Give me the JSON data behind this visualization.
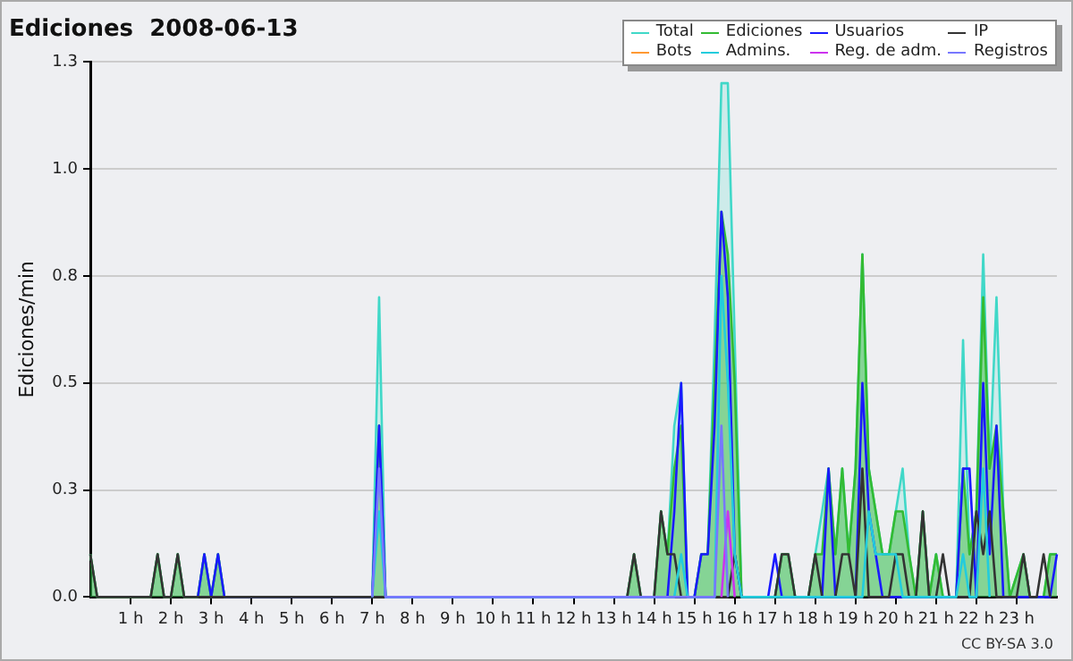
{
  "chart_data": {
    "type": "line",
    "title": "Ediciones  2008-06-13",
    "ylabel": "Ediciones/min",
    "xlim": [
      0,
      24
    ],
    "xticks": [
      {
        "value": 1,
        "label": "1 h"
      },
      {
        "value": 2,
        "label": "2 h"
      },
      {
        "value": 3,
        "label": "3 h"
      },
      {
        "value": 4,
        "label": "4 h"
      },
      {
        "value": 5,
        "label": "5 h"
      },
      {
        "value": 6,
        "label": "6 h"
      },
      {
        "value": 7,
        "label": "7 h"
      },
      {
        "value": 8,
        "label": "8 h"
      },
      {
        "value": 9,
        "label": "9 h"
      },
      {
        "value": 10,
        "label": "10 h"
      },
      {
        "value": 11,
        "label": "11 h"
      },
      {
        "value": 12,
        "label": "12 h"
      },
      {
        "value": 13,
        "label": "13 h"
      },
      {
        "value": 14,
        "label": "14 h"
      },
      {
        "value": 15,
        "label": "15 h"
      },
      {
        "value": 16,
        "label": "16 h"
      },
      {
        "value": 17,
        "label": "17 h"
      },
      {
        "value": 18,
        "label": "18 h"
      },
      {
        "value": 19,
        "label": "19 h"
      },
      {
        "value": 20,
        "label": "20 h"
      },
      {
        "value": 21,
        "label": "21 h"
      },
      {
        "value": 22,
        "label": "22 h"
      },
      {
        "value": 23,
        "label": "23 h"
      }
    ],
    "ylim": [
      0,
      1.25
    ],
    "yticks": [
      {
        "value": 0,
        "label": "0.0"
      },
      {
        "value": 0.25,
        "label": "0.3"
      },
      {
        "value": 0.5,
        "label": "0.5"
      },
      {
        "value": 0.75,
        "label": "0.8"
      },
      {
        "value": 1,
        "label": "1.0"
      },
      {
        "value": 1.25,
        "label": "1.3"
      }
    ],
    "grid": "y",
    "legend": "top right",
    "marker": "none",
    "line_style": "solid",
    "annotations": [
      "CC BY-SA 3.0"
    ],
    "series": [
      {
        "name": "Total",
        "type": "area",
        "color": "#40d8c8",
        "x": [
          0,
          0.17,
          1.5,
          1.67,
          1.83,
          2,
          2.17,
          2.33,
          2.67,
          2.83,
          3,
          3.17,
          3.33,
          7,
          7.17,
          7.33,
          13.33,
          13.5,
          13.67,
          14,
          14.17,
          14.33,
          14.5,
          14.67,
          14.83,
          15,
          15.17,
          15.33,
          15.5,
          15.67,
          15.83,
          16,
          16.17,
          17,
          17.17,
          17.33,
          17.5,
          17.83,
          18,
          18.17,
          18.33,
          18.5,
          18.67,
          18.83,
          19,
          19.17,
          19.33,
          19.5,
          19.67,
          19.83,
          20,
          20.17,
          20.33,
          20.5,
          20.67,
          20.83,
          21,
          21.17,
          21.5,
          21.67,
          21.83,
          22,
          22.17,
          22.33,
          22.5,
          22.67,
          22.83,
          23.17,
          23.33,
          23.67,
          23.83,
          24
        ],
        "values": [
          0.1,
          0,
          0,
          0.1,
          0,
          0,
          0.1,
          0,
          0,
          0.1,
          0,
          0.1,
          0,
          0,
          0.7,
          0,
          0,
          0.1,
          0,
          0,
          0.2,
          0.1,
          0.4,
          0.5,
          0,
          0,
          0.1,
          0.1,
          0.6,
          1.2,
          1.2,
          0.6,
          0,
          0,
          0.1,
          0.1,
          0,
          0,
          0.1,
          0.2,
          0.3,
          0.1,
          0.3,
          0.1,
          0.3,
          0.8,
          0.3,
          0.2,
          0.1,
          0.1,
          0.2,
          0.3,
          0.1,
          0,
          0.2,
          0,
          0.1,
          0,
          0,
          0.6,
          0.1,
          0.2,
          0.8,
          0.3,
          0.7,
          0.2,
          0,
          0.1,
          0,
          0,
          0.1,
          0.1
        ]
      },
      {
        "name": "Ediciones",
        "type": "area",
        "color": "#33bb33",
        "x": [
          0,
          0.17,
          1.5,
          1.67,
          1.83,
          2,
          2.17,
          2.33,
          2.67,
          2.83,
          3,
          3.17,
          3.33,
          7,
          7.17,
          7.33,
          13.33,
          13.5,
          13.67,
          14,
          14.17,
          14.33,
          14.5,
          14.67,
          14.83,
          15,
          15.17,
          15.33,
          15.5,
          15.67,
          15.83,
          16,
          16.17,
          17,
          17.17,
          17.33,
          17.5,
          17.83,
          18,
          18.17,
          18.33,
          18.5,
          18.67,
          18.83,
          19,
          19.17,
          19.33,
          19.5,
          19.67,
          19.83,
          20,
          20.17,
          20.33,
          20.5,
          20.67,
          20.83,
          21,
          21.17,
          21.5,
          21.67,
          21.83,
          22,
          22.17,
          22.33,
          22.5,
          22.67,
          22.83,
          23.17,
          23.33,
          23.67,
          23.83,
          24
        ],
        "values": [
          0.1,
          0,
          0,
          0.1,
          0,
          0,
          0.1,
          0,
          0,
          0.1,
          0,
          0.1,
          0,
          0,
          0.4,
          0,
          0,
          0.1,
          0,
          0,
          0.2,
          0.1,
          0.3,
          0.4,
          0,
          0,
          0.1,
          0.1,
          0.5,
          0.9,
          0.8,
          0.5,
          0,
          0,
          0.1,
          0.1,
          0,
          0,
          0.1,
          0.1,
          0.3,
          0.1,
          0.3,
          0.1,
          0.3,
          0.8,
          0.3,
          0.2,
          0.1,
          0.1,
          0.2,
          0.2,
          0.1,
          0,
          0.2,
          0,
          0.1,
          0,
          0,
          0.3,
          0.1,
          0.2,
          0.7,
          0.3,
          0.4,
          0.2,
          0,
          0.1,
          0,
          0,
          0.1,
          0.1
        ]
      },
      {
        "name": "Usuarios",
        "type": "line",
        "color": "#1a1aff",
        "x": [
          2.67,
          2.83,
          3,
          3.17,
          3.33,
          7,
          7.17,
          7.33,
          14.33,
          14.5,
          14.67,
          14.83,
          15,
          15.17,
          15.33,
          15.5,
          15.67,
          15.83,
          16,
          16.17,
          16.83,
          17,
          17.17,
          18.17,
          18.33,
          18.5,
          19,
          19.17,
          19.33,
          19.5,
          19.67,
          21.5,
          21.67,
          21.83,
          22,
          22.17,
          22.33,
          22.5,
          22.67,
          23.83,
          24
        ],
        "values": [
          0,
          0.1,
          0,
          0.1,
          0,
          0,
          0.4,
          0,
          0,
          0.2,
          0.5,
          0,
          0,
          0.1,
          0.1,
          0.4,
          0.9,
          0.7,
          0.1,
          0,
          0,
          0.1,
          0,
          0,
          0.3,
          0,
          0,
          0.5,
          0.2,
          0.1,
          0,
          0,
          0.3,
          0.3,
          0,
          0.5,
          0.1,
          0.4,
          0,
          0,
          0.1
        ]
      },
      {
        "name": "IP",
        "type": "line",
        "color": "#333333",
        "x": [
          0,
          0.17,
          1.5,
          1.67,
          1.83,
          2,
          2.17,
          2.33,
          13.33,
          13.5,
          13.67,
          14,
          14.17,
          14.33,
          14.5,
          14.67,
          15.83,
          16,
          16.17,
          17,
          17.17,
          17.33,
          17.5,
          17.83,
          18,
          18.17,
          18.5,
          18.67,
          18.83,
          19,
          19.17,
          19.33,
          19.83,
          20,
          20.17,
          20.33,
          20.5,
          20.67,
          20.83,
          21,
          21.17,
          21.33,
          21.83,
          22,
          22.17,
          22.33,
          22.5,
          23,
          23.17,
          23.33,
          23.5,
          23.67,
          23.83
        ],
        "values": [
          0.1,
          0,
          0,
          0.1,
          0,
          0,
          0.1,
          0,
          0,
          0.1,
          0,
          0,
          0.2,
          0.1,
          0.1,
          0,
          0,
          0.1,
          0,
          0,
          0.1,
          0.1,
          0,
          0,
          0.1,
          0,
          0,
          0.1,
          0.1,
          0,
          0.3,
          0,
          0,
          0.1,
          0.1,
          0,
          0,
          0.2,
          0,
          0,
          0.1,
          0,
          0,
          0.2,
          0.1,
          0.2,
          0,
          0,
          0.1,
          0,
          0,
          0.1,
          0
        ]
      },
      {
        "name": "Bots",
        "type": "line",
        "color": "#ff9933"
      },
      {
        "name": "Admins.",
        "type": "line",
        "color": "#22ccdd",
        "x": [
          7,
          7.17,
          7.33,
          14.5,
          14.67,
          14.83,
          15.5,
          15.67,
          15.83,
          16,
          16.17,
          19.17,
          19.33,
          19.5,
          19.67,
          19.83,
          20,
          20.17,
          21.5,
          21.67,
          21.83,
          22,
          22.17,
          22.33
        ],
        "values": [
          0,
          0.2,
          0,
          0,
          0.1,
          0,
          0,
          0.75,
          0.5,
          0.1,
          0,
          0,
          0.2,
          0.1,
          0.1,
          0.1,
          0.1,
          0,
          0,
          0.1,
          0,
          0,
          0.3,
          0
        ]
      },
      {
        "name": "Reg. de adm.",
        "type": "line",
        "color": "#cc33ee",
        "x": [
          15.67,
          15.83,
          16
        ],
        "values": [
          0,
          0.2,
          0
        ]
      },
      {
        "name": "Registros",
        "type": "line",
        "color": "#7777ff",
        "x": [
          7,
          7.17,
          7.33,
          15.5,
          15.67,
          15.83
        ],
        "values": [
          0,
          0.3,
          0,
          0,
          0.4,
          0
        ]
      }
    ]
  }
}
